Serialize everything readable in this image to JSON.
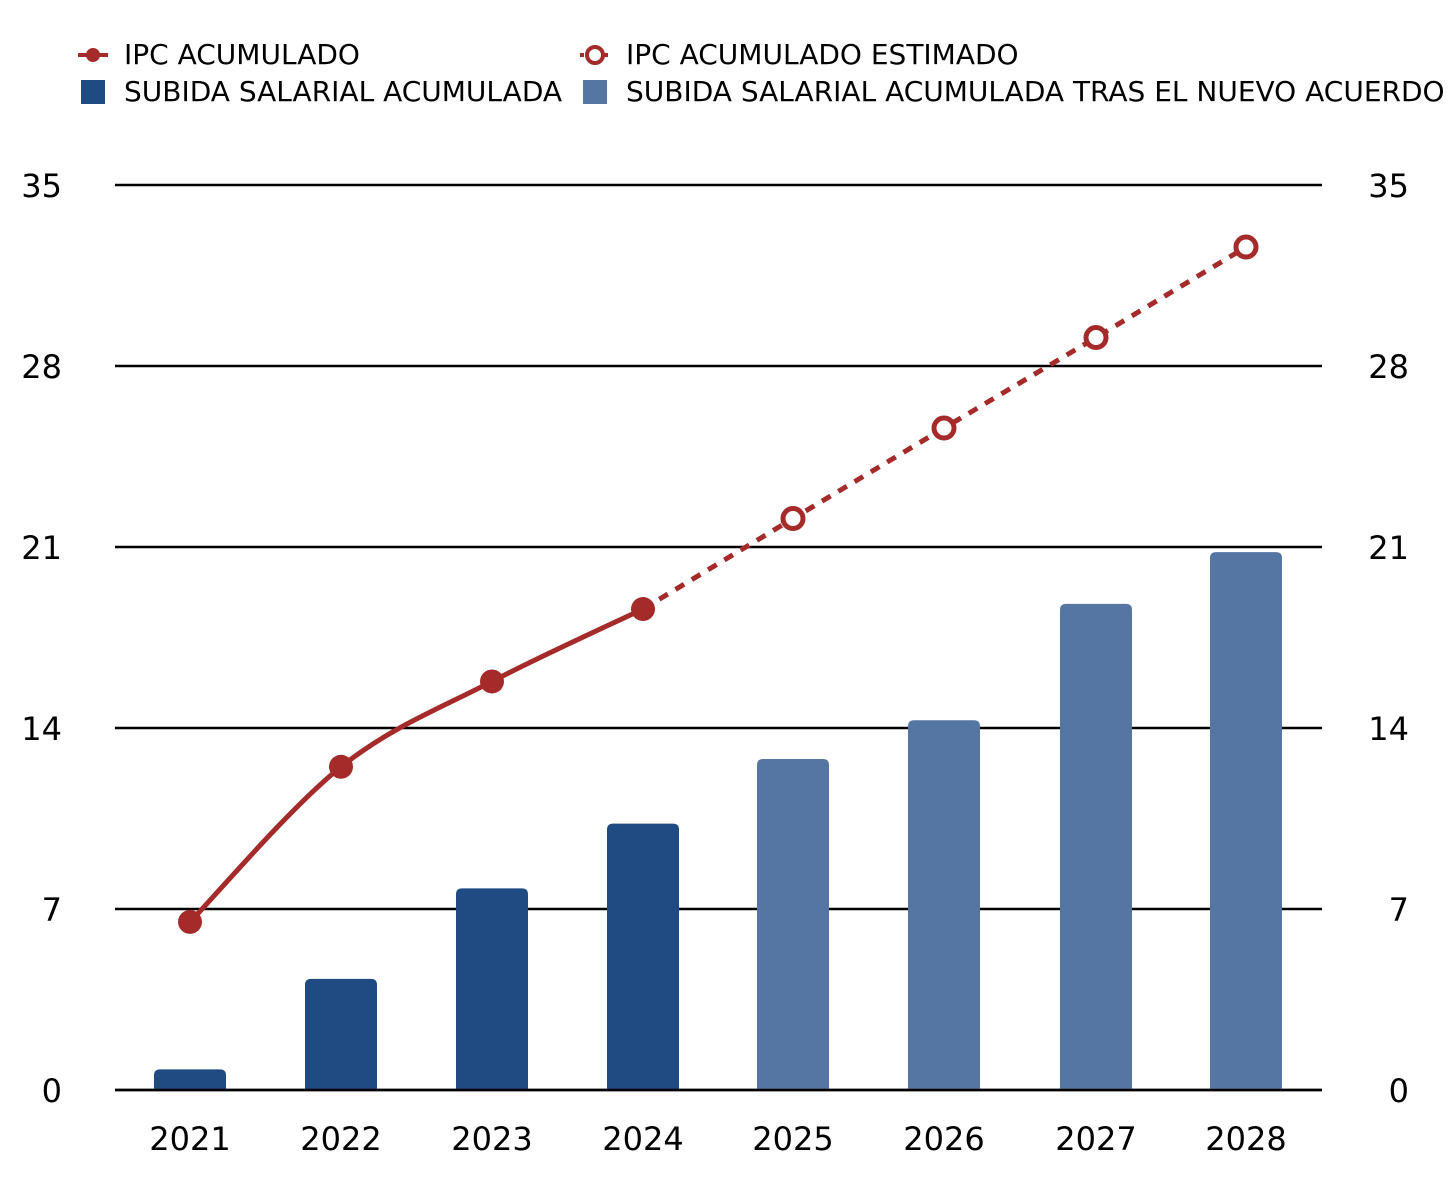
{
  "legend": {
    "ipc": "IPC ACUMULADO",
    "ipc_est": "IPC ACUMULADO ESTIMADO",
    "salary": "SUBIDA SALARIAL ACUMULADA",
    "salary_new": "SUBIDA SALARIAL ACUMULADA TRAS EL NUEVO ACUERDO"
  },
  "chart_data": {
    "type": "bar",
    "categories": [
      "2021",
      "2022",
      "2023",
      "2024",
      "2025",
      "2026",
      "2027",
      "2028"
    ],
    "ylim": [
      0,
      35
    ],
    "yticks": [
      0,
      7,
      14,
      21,
      28,
      35
    ],
    "grid": true,
    "legend_position": "top",
    "series": [
      {
        "name": "SUBIDA SALARIAL ACUMULADA",
        "kind": "bar",
        "color": "#1f4a82",
        "values": [
          0.8,
          4.3,
          7.8,
          10.3,
          null,
          null,
          null,
          null
        ]
      },
      {
        "name": "SUBIDA SALARIAL ACUMULADA TRAS EL NUEVO ACUERDO",
        "kind": "bar",
        "color": "#5575a3",
        "values": [
          null,
          null,
          null,
          null,
          12.8,
          14.3,
          18.8,
          20.8
        ]
      },
      {
        "name": "IPC ACUMULADO",
        "kind": "line",
        "color": "#a52a2a",
        "values": [
          6.5,
          12.5,
          15.8,
          18.6,
          null,
          null,
          null,
          null
        ]
      },
      {
        "name": "IPC ACUMULADO ESTIMADO",
        "kind": "line-dashed",
        "color": "#a52a2a",
        "values": [
          null,
          null,
          null,
          18.6,
          22.1,
          25.6,
          29.1,
          32.6
        ]
      }
    ]
  }
}
